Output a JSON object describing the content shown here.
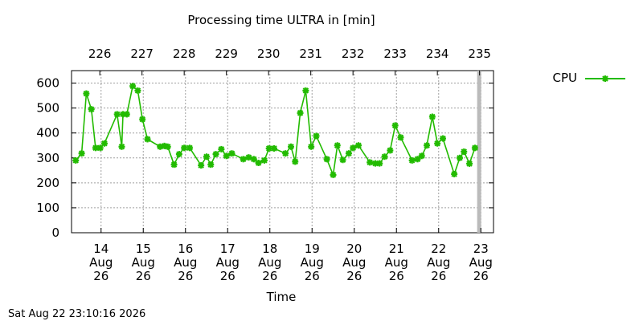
{
  "chart_data": {
    "type": "line",
    "title": "Processing time ULTRA in [min]",
    "xlabel": "Time",
    "ylabel": "",
    "ylim": [
      0,
      650
    ],
    "y_ticks": [
      0,
      100,
      200,
      300,
      400,
      500,
      600
    ],
    "xlim": [
      13.3,
      23.3
    ],
    "grid": true,
    "legend_position": "top-right, outside plot",
    "x_ticks": [
      {
        "day": 14,
        "l1": "14",
        "l2": "Aug",
        "l3": "26"
      },
      {
        "day": 15,
        "l1": "15",
        "l2": "Aug",
        "l3": "26"
      },
      {
        "day": 16,
        "l1": "16",
        "l2": "Aug",
        "l3": "26"
      },
      {
        "day": 17,
        "l1": "17",
        "l2": "Aug",
        "l3": "26"
      },
      {
        "day": 18,
        "l1": "18",
        "l2": "Aug",
        "l3": "26"
      },
      {
        "day": 19,
        "l1": "19",
        "l2": "Aug",
        "l3": "26"
      },
      {
        "day": 20,
        "l1": "20",
        "l2": "Aug",
        "l3": "26"
      },
      {
        "day": 21,
        "l1": "21",
        "l2": "Aug",
        "l3": "26"
      },
      {
        "day": 22,
        "l1": "22",
        "l2": "Aug",
        "l3": "26"
      },
      {
        "day": 23,
        "l1": "23",
        "l2": "Aug",
        "l3": "26"
      }
    ],
    "x2_ticks": [
      {
        "day": 13.97,
        "label": "226"
      },
      {
        "day": 14.97,
        "label": "227"
      },
      {
        "day": 15.97,
        "label": "228"
      },
      {
        "day": 16.97,
        "label": "229"
      },
      {
        "day": 17.97,
        "label": "230"
      },
      {
        "day": 18.97,
        "label": "231"
      },
      {
        "day": 19.97,
        "label": "232"
      },
      {
        "day": 20.97,
        "label": "233"
      },
      {
        "day": 21.97,
        "label": "234"
      },
      {
        "day": 22.97,
        "label": "235"
      }
    ],
    "current_time_marker": 22.96,
    "series": [
      {
        "name": "CPU",
        "color": "#22bb00",
        "x": [
          13.4,
          13.54,
          13.65,
          13.77,
          13.87,
          13.98,
          14.08,
          14.38,
          14.49,
          14.52,
          14.61,
          14.75,
          14.87,
          14.98,
          15.1,
          15.4,
          15.5,
          15.58,
          15.73,
          15.85,
          15.97,
          16.1,
          16.37,
          16.5,
          16.6,
          16.72,
          16.85,
          16.97,
          17.1,
          17.37,
          17.5,
          17.62,
          17.73,
          17.87,
          17.98,
          18.1,
          18.37,
          18.5,
          18.6,
          18.72,
          18.85,
          18.98,
          19.1,
          19.35,
          19.5,
          19.6,
          19.73,
          19.87,
          19.97,
          20.1,
          20.37,
          20.5,
          20.6,
          20.72,
          20.85,
          20.97,
          21.1,
          21.37,
          21.5,
          21.6,
          21.72,
          21.85,
          21.97,
          22.1,
          22.37,
          22.5,
          22.6,
          22.73,
          22.86
        ],
        "y": [
          290,
          318,
          558,
          495,
          340,
          340,
          358,
          475,
          345,
          475,
          475,
          588,
          570,
          455,
          375,
          345,
          348,
          345,
          273,
          315,
          340,
          340,
          270,
          305,
          273,
          315,
          335,
          308,
          318,
          295,
          302,
          295,
          280,
          290,
          338,
          338,
          318,
          345,
          285,
          480,
          570,
          345,
          388,
          295,
          232,
          350,
          292,
          318,
          340,
          350,
          282,
          278,
          278,
          305,
          330,
          430,
          382,
          290,
          295,
          308,
          350,
          465,
          358,
          378,
          235,
          300,
          325,
          277,
          340
        ]
      }
    ],
    "timestamp": "Sat Aug 22 23:10:16 2026"
  }
}
